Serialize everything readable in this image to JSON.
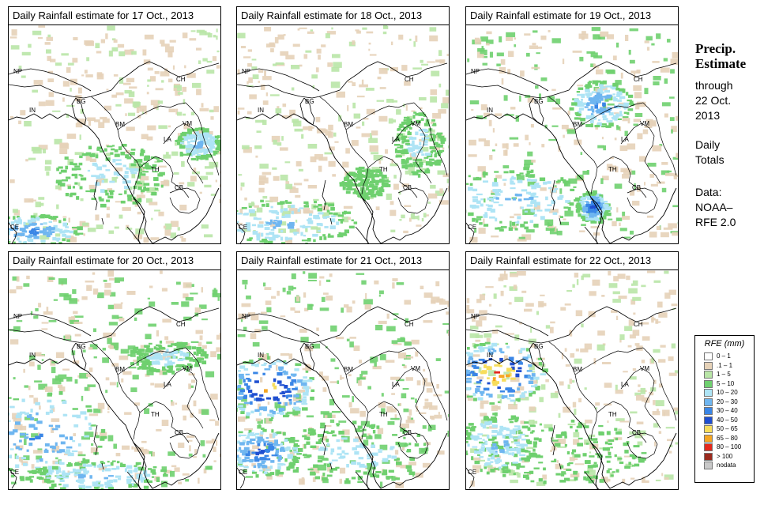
{
  "panels": [
    {
      "title": "Daily Rainfall estimate for  17 Oct., 2013"
    },
    {
      "title": "Daily Rainfall estimate for  18 Oct., 2013"
    },
    {
      "title": "Daily Rainfall estimate for  19 Oct., 2013"
    },
    {
      "title": "Daily Rainfall estimate for  20 Oct., 2013"
    },
    {
      "title": "Daily Rainfall estimate for  21 Oct., 2013"
    },
    {
      "title": "Daily Rainfall estimate for  22 Oct., 2013"
    }
  ],
  "country_labels": [
    "NP",
    "IN",
    "BG",
    "CH",
    "BM",
    "VM",
    "LA",
    "TH",
    "CB",
    "CE"
  ],
  "side": {
    "title_line1": "Precip.",
    "title_line2": "Estimate",
    "through": "through",
    "date_line1": "22 Oct.",
    "date_line2": "2013",
    "daily1": "Daily",
    "daily2": "Totals",
    "data1": "Data:",
    "data2": "NOAA–",
    "data3": "RFE 2.0"
  },
  "legend": {
    "title": "RFE (mm)",
    "items": [
      {
        "label": "0 – 1",
        "color": "#ffffff"
      },
      {
        "label": ".1 – 1",
        "color": "#e6d2b8"
      },
      {
        "label": "1 – 5",
        "color": "#b9e6a7"
      },
      {
        "label": "5 – 10",
        "color": "#6fd06f"
      },
      {
        "label": "10 – 20",
        "color": "#aee4f5"
      },
      {
        "label": "20 – 30",
        "color": "#6fb6f0"
      },
      {
        "label": "30 – 40",
        "color": "#3a86e6"
      },
      {
        "label": "40 – 50",
        "color": "#1f4fd0"
      },
      {
        "label": "50 – 65",
        "color": "#f7dd5b"
      },
      {
        "label": "65 – 80",
        "color": "#f5a623"
      },
      {
        "label": "80 – 100",
        "color": "#e4281c"
      },
      {
        "label": "> 100",
        "color": "#9b2a1e"
      },
      {
        "label": "nodata",
        "color": "#c9c9c9"
      }
    ]
  }
}
